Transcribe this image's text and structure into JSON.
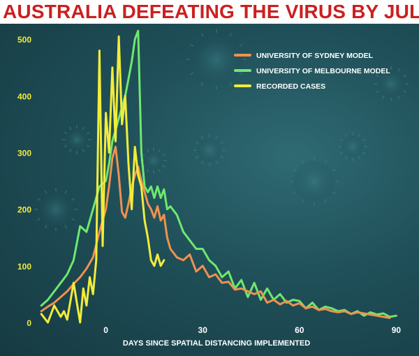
{
  "colors": {
    "title": "#cc1f1f",
    "axis_text": "#f2ec3a",
    "xlabel": "#ffffff",
    "sydney": "#f09150",
    "melbourne": "#6ee86e",
    "recorded": "#f2ec3a"
  },
  "chart_data": {
    "type": "line",
    "title": "AUSTRALIA DEFEATING THE VIRUS BY JULY",
    "xlabel": "DAYS SINCE SPATIAL DISTANCING IMPLEMENTED",
    "ylabel": "",
    "xlim": [
      -22,
      91
    ],
    "ylim": [
      0,
      520
    ],
    "xticks": [
      0,
      30,
      60,
      90
    ],
    "yticks": [
      0,
      100,
      200,
      300,
      400,
      500
    ],
    "legend_position": "top-right",
    "grid": false,
    "series": [
      {
        "name": "UNIVERSITY OF SYDNEY MODEL",
        "color": "#f09150",
        "x": [
          -20,
          -18,
          -16,
          -14,
          -12,
          -10,
          -8,
          -6,
          -4,
          -2,
          0,
          1,
          2,
          3,
          4,
          5,
          6,
          7,
          8,
          9,
          10,
          11,
          12,
          13,
          14,
          15,
          16,
          17,
          18,
          19,
          20,
          22,
          24,
          26,
          28,
          30,
          32,
          34,
          36,
          38,
          40,
          42,
          44,
          46,
          48,
          50,
          52,
          54,
          56,
          58,
          60,
          62,
          64,
          66,
          68,
          70,
          72,
          74,
          76,
          78,
          80,
          82,
          84,
          86,
          88
        ],
        "y": [
          20,
          28,
          35,
          45,
          55,
          68,
          80,
          95,
          115,
          160,
          200,
          240,
          290,
          310,
          260,
          195,
          185,
          210,
          240,
          260,
          275,
          250,
          230,
          210,
          200,
          185,
          205,
          180,
          190,
          150,
          130,
          115,
          110,
          120,
          90,
          100,
          80,
          85,
          70,
          72,
          58,
          60,
          55,
          50,
          55,
          35,
          40,
          32,
          38,
          30,
          34,
          25,
          28,
          22,
          24,
          20,
          18,
          20,
          15,
          18,
          16,
          14,
          12,
          10,
          8
        ]
      },
      {
        "name": "UNIVERSITY OF MELBOURNE MODEL",
        "color": "#6ee86e",
        "x": [
          -20,
          -18,
          -16,
          -14,
          -12,
          -10,
          -8,
          -6,
          -4,
          -2,
          0,
          1,
          2,
          3,
          4,
          5,
          6,
          7,
          8,
          9,
          10,
          11,
          12,
          13,
          14,
          15,
          16,
          17,
          18,
          19,
          20,
          22,
          24,
          26,
          28,
          30,
          32,
          34,
          36,
          38,
          40,
          42,
          44,
          46,
          48,
          50,
          52,
          54,
          56,
          58,
          60,
          62,
          64,
          66,
          68,
          70,
          72,
          74,
          76,
          78,
          80,
          82,
          84,
          86,
          88,
          90
        ],
        "y": [
          30,
          40,
          55,
          70,
          85,
          110,
          170,
          160,
          200,
          240,
          250,
          280,
          320,
          340,
          360,
          380,
          400,
          430,
          460,
          500,
          515,
          300,
          240,
          230,
          240,
          220,
          240,
          220,
          235,
          200,
          205,
          190,
          160,
          145,
          130,
          130,
          110,
          100,
          80,
          90,
          60,
          75,
          45,
          70,
          40,
          60,
          40,
          50,
          35,
          40,
          38,
          25,
          35,
          22,
          28,
          25,
          20,
          22,
          15,
          20,
          12,
          18,
          14,
          16,
          10,
          12
        ]
      },
      {
        "name": "RECORDED CASES",
        "color": "#f2ec3a",
        "x": [
          -20,
          -18,
          -16,
          -14,
          -13,
          -12,
          -10,
          -8,
          -7,
          -6,
          -5,
          -4,
          -3,
          -2,
          -1,
          0,
          1,
          2,
          3,
          4,
          5,
          6,
          7,
          8,
          9,
          10,
          11,
          12,
          13,
          14,
          15,
          16,
          17,
          18
        ],
        "y": [
          15,
          0,
          30,
          10,
          20,
          5,
          70,
          0,
          60,
          30,
          80,
          50,
          110,
          480,
          135,
          370,
          300,
          450,
          320,
          505,
          350,
          400,
          280,
          200,
          310,
          260,
          240,
          180,
          150,
          110,
          100,
          120,
          100,
          110
        ]
      }
    ]
  }
}
